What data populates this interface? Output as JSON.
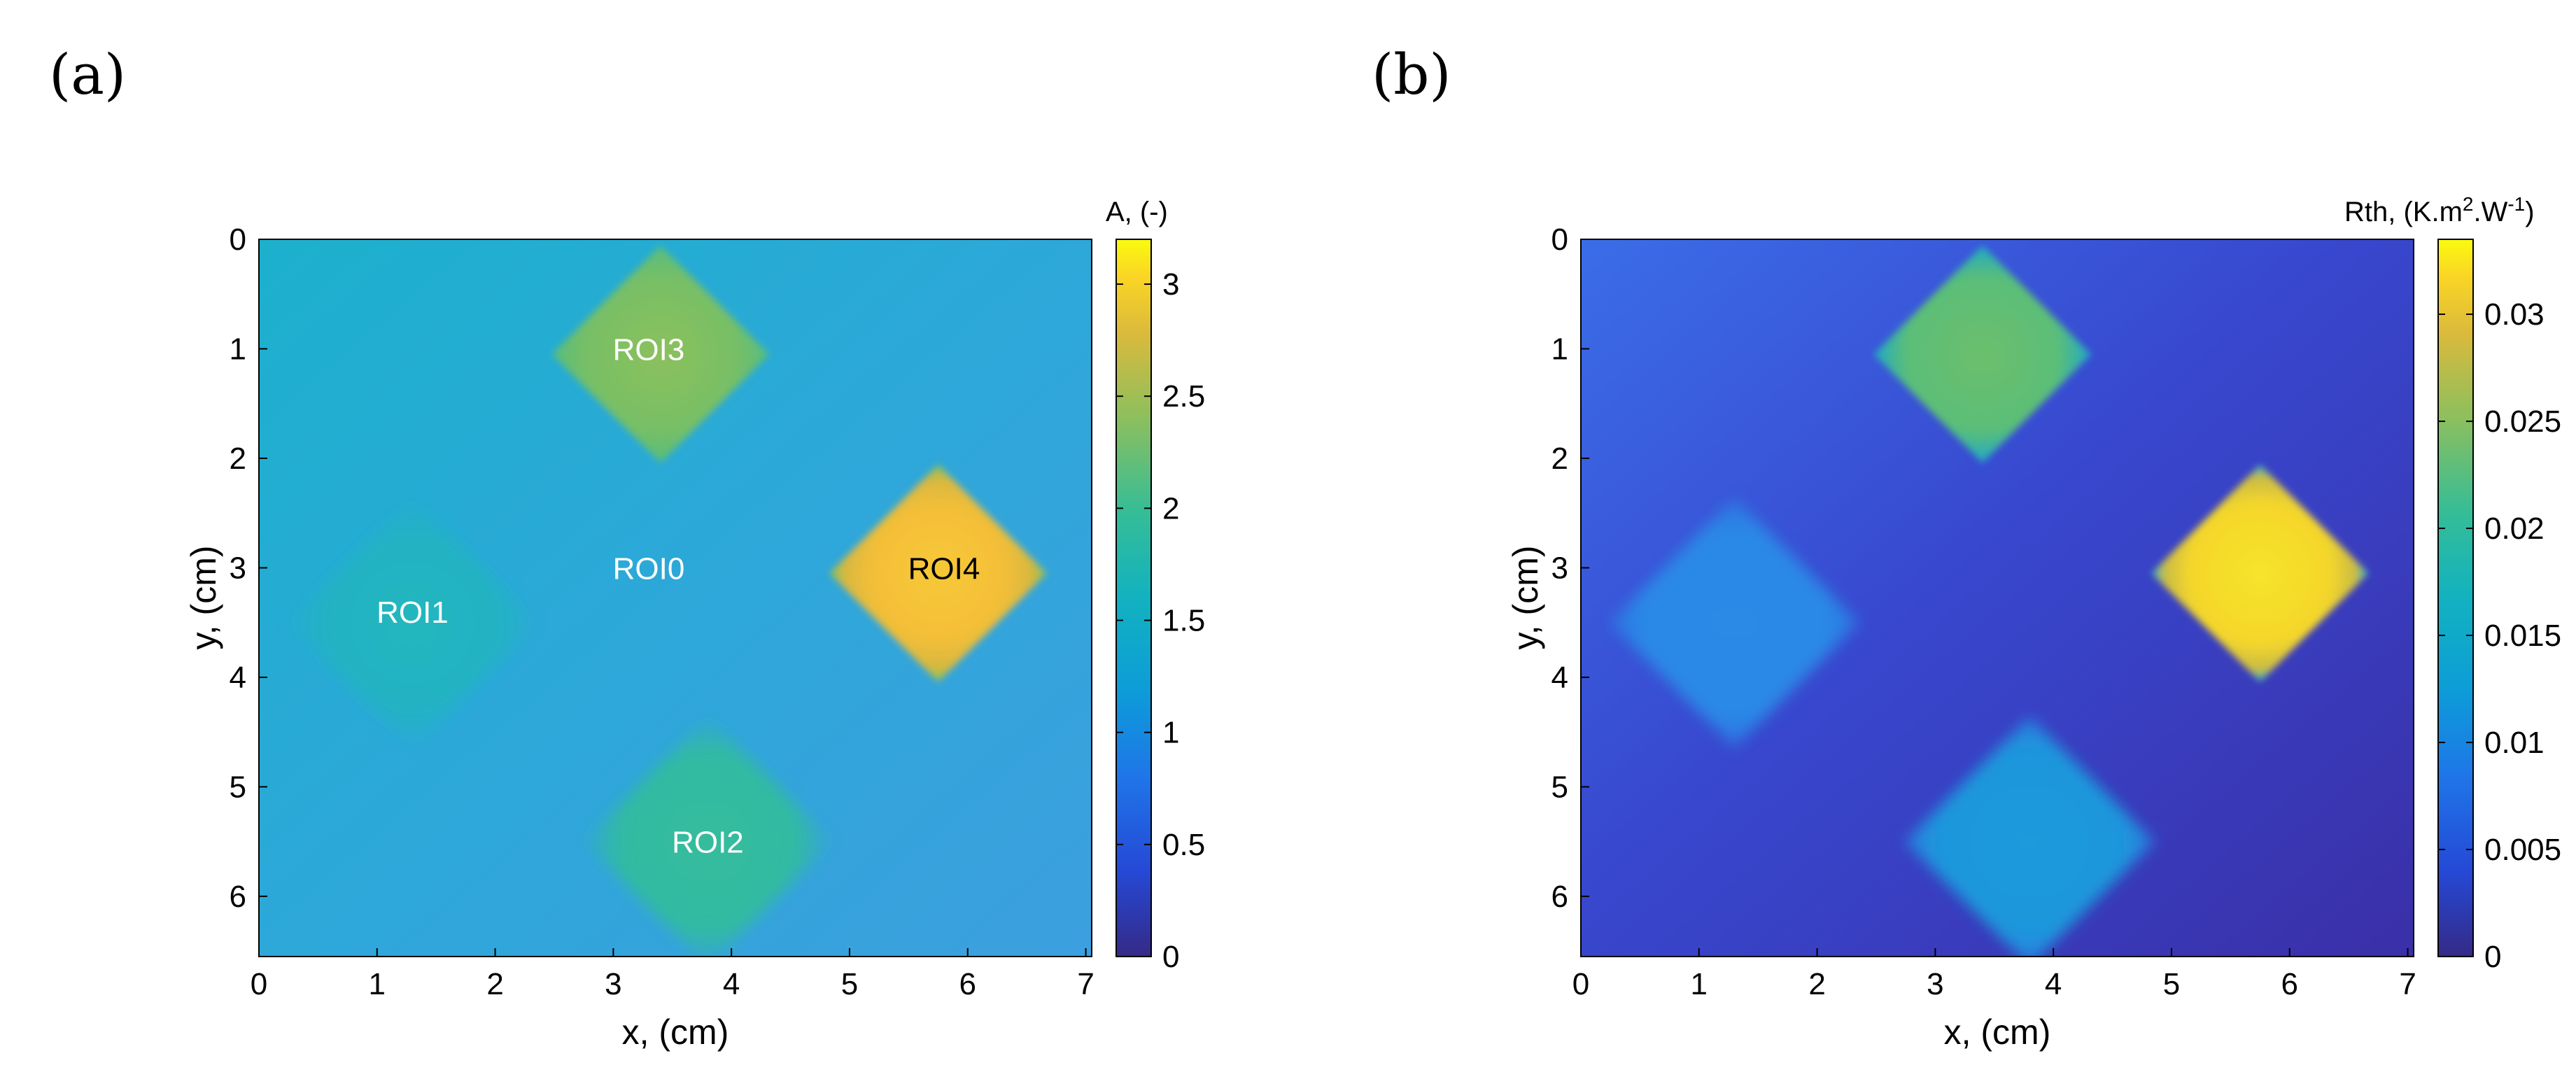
{
  "panels": [
    {
      "label": "(a)",
      "colorbar": {
        "title": "A, (-)",
        "min": 0,
        "max": 3.2,
        "ticks": [
          0,
          0.5,
          1,
          1.5,
          2,
          2.5,
          3
        ],
        "tick_labels": [
          "0",
          "0.5",
          "1",
          "1.5",
          "2",
          "2.5",
          "3"
        ]
      },
      "roi_labels": [
        {
          "text": "ROI0",
          "x": 3.3,
          "y": 3.0,
          "color": "#ffffff"
        },
        {
          "text": "ROI1",
          "x": 1.3,
          "y": 3.4,
          "color": "#ffffff"
        },
        {
          "text": "ROI2",
          "x": 3.8,
          "y": 5.5,
          "color": "#ffffff"
        },
        {
          "text": "ROI3",
          "x": 3.3,
          "y": 1.0,
          "color": "#ffffff"
        },
        {
          "text": "ROI4",
          "x": 5.8,
          "y": 3.0,
          "color": "#000000"
        }
      ]
    },
    {
      "label": "(b)",
      "colorbar": {
        "title_main": "Rth, (K.m",
        "title_sup1": "2",
        "title_mid": ".W",
        "title_sup2": "-1",
        "title_end": ")",
        "min": 0,
        "max": 0.0335,
        "ticks": [
          0,
          0.005,
          0.01,
          0.015,
          0.02,
          0.025,
          0.03
        ],
        "tick_labels": [
          "0",
          "0.005",
          "0.01",
          "0.015",
          "0.02",
          "0.025",
          "0.03"
        ]
      },
      "roi_labels": []
    }
  ],
  "axes": {
    "xlabel": "x, (cm)",
    "ylabel": "y, (cm)",
    "xlim": [
      0,
      7.05
    ],
    "ylim": [
      0,
      6.55
    ],
    "xticks": [
      "0",
      "1",
      "2",
      "3",
      "4",
      "5",
      "6",
      "7"
    ],
    "yticks": [
      "0",
      "1",
      "2",
      "3",
      "4",
      "5",
      "6"
    ]
  },
  "chart_data": [
    {
      "type": "heatmap",
      "title": "(a)",
      "xlabel": "x, (cm)",
      "ylabel": "y, (cm)",
      "xlim": [
        0,
        7.05
      ],
      "ylim": [
        0,
        6.55
      ],
      "colorbar_label": "A, (-)",
      "colorbar_range": [
        0,
        3.2
      ],
      "background_value": 1.25,
      "regions": [
        {
          "name": "ROI0",
          "center": [
            3.3,
            3.0
          ],
          "value": 1.2,
          "half_diagonal": 0
        },
        {
          "name": "ROI1",
          "center": [
            1.3,
            3.5
          ],
          "value": 1.4,
          "half_diagonal": 1.15
        },
        {
          "name": "ROI2",
          "center": [
            3.8,
            5.5
          ],
          "value": 1.75,
          "half_diagonal": 1.15
        },
        {
          "name": "ROI3",
          "center": [
            3.4,
            1.05
          ],
          "value": 2.1,
          "half_diagonal": 1.0
        },
        {
          "name": "ROI4",
          "center": [
            5.75,
            3.05
          ],
          "value": 2.95,
          "half_diagonal": 1.0
        }
      ]
    },
    {
      "type": "heatmap",
      "title": "(b)",
      "xlabel": "x, (cm)",
      "ylabel": "y, (cm)",
      "xlim": [
        0,
        7.05
      ],
      "ylim": [
        0,
        6.55
      ],
      "colorbar_label": "Rth, (K.m2.W-1)",
      "colorbar_range": [
        0,
        0.0335
      ],
      "background_value": 0.004,
      "regions": [
        {
          "name": "ROI1",
          "center": [
            1.3,
            3.5
          ],
          "value": 0.011,
          "half_diagonal": 1.15
        },
        {
          "name": "ROI2",
          "center": [
            3.8,
            5.5
          ],
          "value": 0.012,
          "half_diagonal": 1.15
        },
        {
          "name": "ROI3",
          "center": [
            3.4,
            1.05
          ],
          "value": 0.02,
          "half_diagonal": 1.0
        },
        {
          "name": "ROI4",
          "center": [
            5.75,
            3.05
          ],
          "value": 0.032,
          "half_diagonal": 1.0
        }
      ]
    }
  ]
}
